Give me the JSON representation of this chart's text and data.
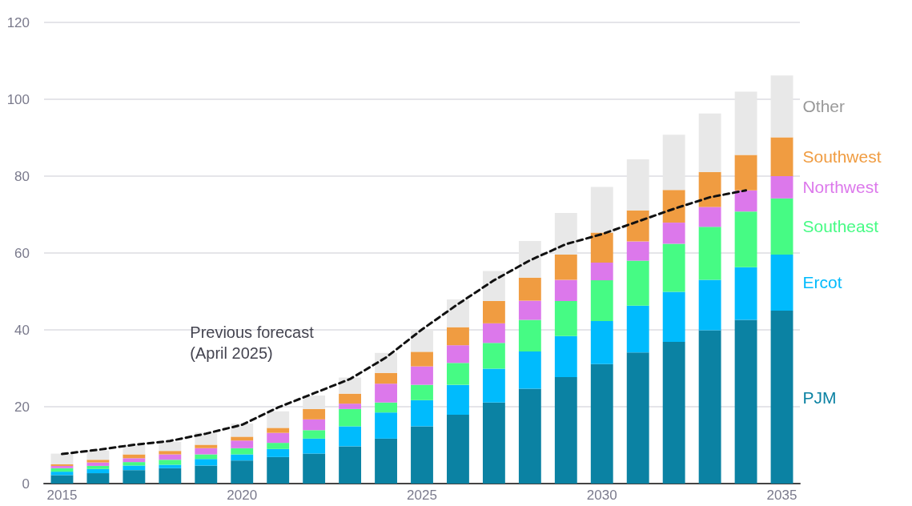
{
  "chart_data": {
    "type": "bar",
    "stacked": true,
    "categories": [
      "2015",
      null,
      null,
      null,
      null,
      "2020",
      null,
      null,
      null,
      null,
      "2025",
      null,
      null,
      null,
      null,
      "2030",
      null,
      null,
      null,
      null,
      "2035"
    ],
    "ylim": [
      0,
      120
    ],
    "yticks": [
      0,
      20,
      40,
      60,
      80,
      100,
      120
    ],
    "grid": "y",
    "legend": false,
    "series": [
      {
        "name": "PJM",
        "color": "#0b82a3",
        "values": [
          2.2,
          2.7,
          3.5,
          4.0,
          4.7,
          6.0,
          6.9,
          7.8,
          9.7,
          11.7,
          14.9,
          17.9,
          21.1,
          24.7,
          27.7,
          31.1,
          34.1,
          36.9,
          39.9,
          42.6,
          45.0
        ]
      },
      {
        "name": "Ercot",
        "color": "#00bbfd",
        "values": [
          0.9,
          1.1,
          1.2,
          0.9,
          1.7,
          1.6,
          2.1,
          3.9,
          5.2,
          6.8,
          6.8,
          7.8,
          8.8,
          9.7,
          10.7,
          11.2,
          12.2,
          13.0,
          13.1,
          13.7,
          14.6
        ]
      },
      {
        "name": "Southeast",
        "color": "#46fb84",
        "values": [
          0.9,
          0.8,
          0.9,
          1.3,
          1.2,
          1.6,
          1.6,
          2.2,
          4.5,
          2.6,
          4.0,
          5.7,
          6.7,
          8.2,
          9.1,
          10.6,
          11.7,
          12.5,
          13.8,
          14.5,
          14.6
        ]
      },
      {
        "name": "Northwest",
        "color": "#dc78eb",
        "values": [
          0.6,
          0.9,
          1.0,
          1.4,
          1.6,
          2.0,
          2.6,
          2.8,
          1.4,
          4.9,
          4.8,
          4.6,
          5.1,
          5.0,
          5.5,
          4.6,
          5.0,
          5.5,
          5.2,
          5.5,
          5.8
        ]
      },
      {
        "name": "Southwest",
        "color": "#f09c41",
        "values": [
          0.4,
          0.7,
          1.0,
          0.9,
          0.9,
          1.0,
          1.3,
          2.7,
          2.6,
          2.8,
          3.8,
          4.7,
          5.8,
          6.0,
          6.6,
          7.8,
          8.1,
          8.5,
          9.1,
          9.2,
          10.1
        ]
      },
      {
        "name": "Other",
        "color": "#e8e8e8",
        "values": [
          2.8,
          2.4,
          2.4,
          2.4,
          3.2,
          3.4,
          4.3,
          3.5,
          4.2,
          5.2,
          5.8,
          7.2,
          7.8,
          9.5,
          10.8,
          11.9,
          13.3,
          14.4,
          15.2,
          16.5,
          16.1
        ]
      },
      {
        "name": "Previous forecast (April 2025)",
        "type": "line",
        "color": "#111111",
        "line_style": "dashed",
        "marker": "none",
        "values": [
          7.7,
          8.8,
          10.1,
          11.1,
          13.0,
          15.3,
          19.8,
          23.5,
          27.2,
          32.8,
          40.1,
          46.7,
          52.9,
          58.1,
          62.3,
          64.9,
          68.2,
          71.5,
          74.5,
          76.3,
          null
        ]
      }
    ]
  }
}
